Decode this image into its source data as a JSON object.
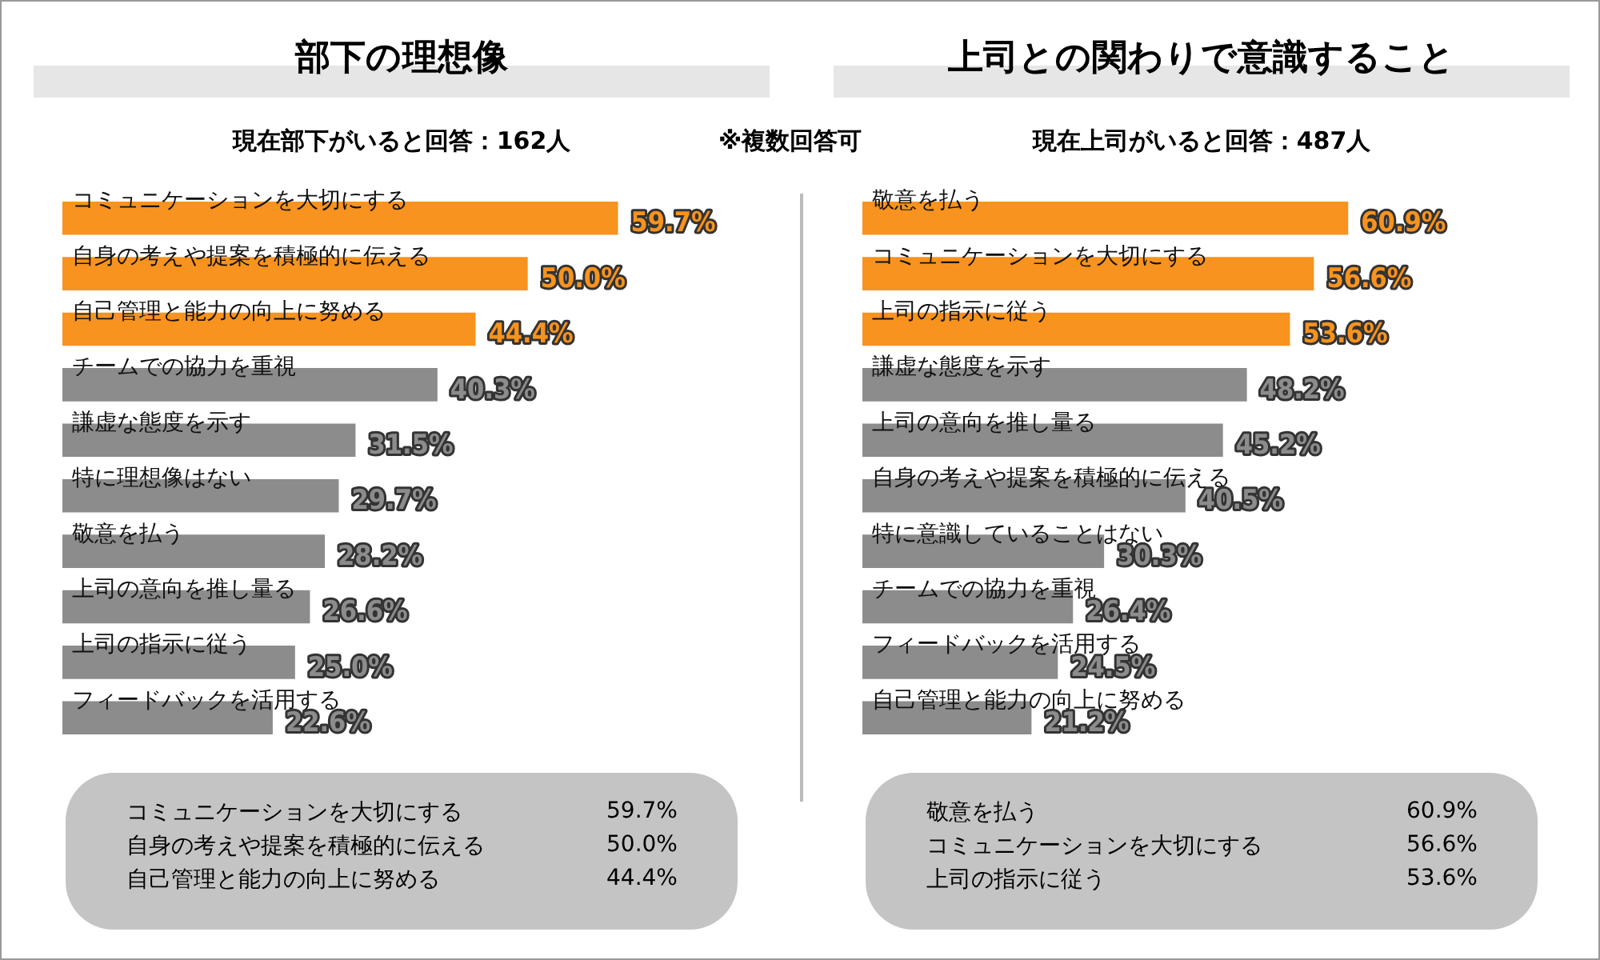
{
  "chart_data": [
    {
      "type": "bar",
      "orientation": "horizontal",
      "title": "部下の理想像",
      "subtitle": "現在部下がいると回答：162人",
      "categories": [
        "コミュニケーションを大切にする",
        "自身の考えや提案を積極的に伝える",
        "自己管理と能力の向上に努める",
        "チームでの協力を重視",
        "謙虚な態度を示す",
        "特に理想像はない",
        "敬意を払う",
        "上司の意向を推し量る",
        "上司の指示に従う",
        "フィードバックを活用する"
      ],
      "values": [
        59.7,
        50.0,
        44.4,
        40.3,
        31.5,
        29.7,
        28.2,
        26.6,
        25.0,
        22.6
      ],
      "colors": [
        "#f7931e",
        "#f7931e",
        "#f7931e",
        "#8c8c8c",
        "#8c8c8c",
        "#8c8c8c",
        "#8c8c8c",
        "#8c8c8c",
        "#8c8c8c",
        "#8c8c8c"
      ],
      "value_labels": [
        "59.7%",
        "50.0%",
        "44.4%",
        "40.3%",
        "31.5%",
        "29.7%",
        "28.2%",
        "26.6%",
        "25.0%",
        "22.6%"
      ],
      "tick_labels": false,
      "legend": false,
      "annotations": [
        "※複数回答可",
        "コミュニケーションを大切にする\t59.7%",
        "自身の考えや提案を積極的に伝える\t50.0%",
        "自己管理と能力の向上に努める\t44.4%"
      ]
    },
    {
      "type": "bar",
      "orientation": "horizontal",
      "title": "上司との関わりで意識すること",
      "subtitle": "現在上司がいると回答：487人",
      "categories": [
        "敬意を払う",
        "コミュニケーションを大切にする",
        "上司の指示に従う",
        "謙虚な態度を示す",
        "上司の意向を推し量る",
        "自身の考えや提案を積極的に伝える",
        "特に意識していることはない",
        "チームでの協力を重視",
        "フィードバックを活用する",
        "自己管理と能力の向上に努める"
      ],
      "values": [
        60.9,
        56.6,
        53.6,
        48.2,
        45.2,
        40.5,
        30.3,
        26.4,
        24.5,
        21.2
      ],
      "colors": [
        "#f7931e",
        "#f7931e",
        "#f7931e",
        "#8c8c8c",
        "#8c8c8c",
        "#8c8c8c",
        "#8c8c8c",
        "#8c8c8c",
        "#8c8c8c",
        "#8c8c8c"
      ],
      "value_labels": [
        "60.9%",
        "56.6%",
        "53.6%",
        "48.2%",
        "45.2%",
        "40.5%",
        "30.3%",
        "26.4%",
        "24.5%",
        "21.2%"
      ],
      "tick_labels": false,
      "legend": false,
      "annotations": [
        "敬意を払う\t60.9%",
        "コミュニケーションを大切にする\t56.6%",
        "上司の指示に従う\t53.6%"
      ]
    }
  ]
}
